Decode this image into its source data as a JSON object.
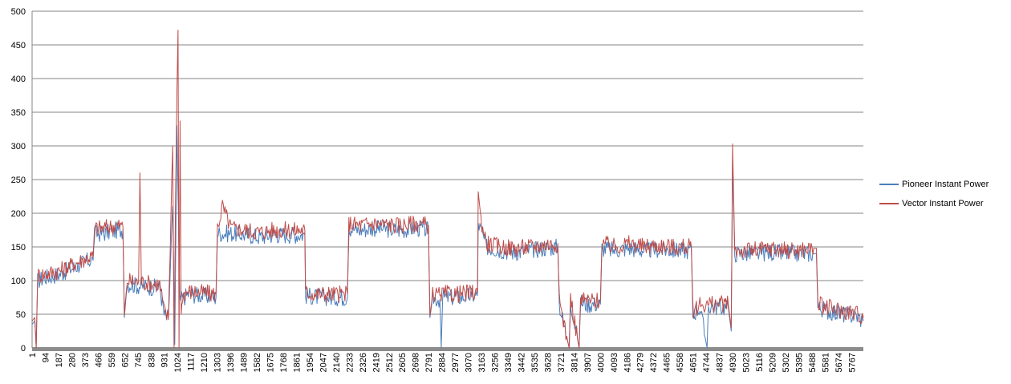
{
  "chart_data": {
    "type": "line",
    "title": "",
    "xlabel": "",
    "ylabel": "",
    "ylim": [
      0,
      500
    ],
    "yticks": [
      0,
      50,
      100,
      150,
      200,
      250,
      300,
      350,
      400,
      450,
      500
    ],
    "x_count": 5850,
    "xticks": [
      1,
      94,
      187,
      280,
      373,
      466,
      559,
      652,
      745,
      838,
      931,
      1024,
      1117,
      1210,
      1303,
      1396,
      1489,
      1582,
      1675,
      1768,
      1861,
      1954,
      2047,
      2140,
      2233,
      2326,
      2419,
      2512,
      2605,
      2698,
      2791,
      2884,
      2977,
      3070,
      3163,
      3256,
      3349,
      3442,
      3535,
      3628,
      3721,
      3814,
      3907,
      4000,
      4093,
      4186,
      4279,
      4372,
      4465,
      4558,
      4651,
      4744,
      4837,
      4930,
      5023,
      5116,
      5209,
      5302,
      5395,
      5488,
      5581,
      5674,
      5767
    ],
    "grid": "horizontal",
    "legend_position": "right",
    "series": [
      {
        "name": "Pioneer Instant Power",
        "color": "#4a7ebb",
        "points": [
          [
            1,
            35
          ],
          [
            20,
            40
          ],
          [
            30,
            0
          ],
          [
            40,
            100
          ],
          [
            100,
            105
          ],
          [
            200,
            110
          ],
          [
            300,
            120
          ],
          [
            400,
            130
          ],
          [
            430,
            130
          ],
          [
            440,
            170
          ],
          [
            500,
            170
          ],
          [
            600,
            175
          ],
          [
            640,
            175
          ],
          [
            650,
            45
          ],
          [
            670,
            95
          ],
          [
            750,
            92
          ],
          [
            850,
            90
          ],
          [
            900,
            90
          ],
          [
            930,
            50
          ],
          [
            960,
            40
          ],
          [
            990,
            210
          ],
          [
            1005,
            5
          ],
          [
            1020,
            330
          ],
          [
            1030,
            200
          ],
          [
            1040,
            70
          ],
          [
            1100,
            80
          ],
          [
            1200,
            78
          ],
          [
            1295,
            75
          ],
          [
            1305,
            170
          ],
          [
            1400,
            170
          ],
          [
            1500,
            168
          ],
          [
            1600,
            165
          ],
          [
            1700,
            168
          ],
          [
            1800,
            168
          ],
          [
            1920,
            168
          ],
          [
            1925,
            78
          ],
          [
            2000,
            76
          ],
          [
            2100,
            75
          ],
          [
            2220,
            75
          ],
          [
            2230,
            178
          ],
          [
            2300,
            175
          ],
          [
            2400,
            178
          ],
          [
            2500,
            176
          ],
          [
            2600,
            175
          ],
          [
            2700,
            178
          ],
          [
            2790,
            175
          ],
          [
            2800,
            45
          ],
          [
            2820,
            75
          ],
          [
            2870,
            72
          ],
          [
            2880,
            0
          ],
          [
            2890,
            75
          ],
          [
            3000,
            75
          ],
          [
            3100,
            78
          ],
          [
            3135,
            78
          ],
          [
            3140,
            185
          ],
          [
            3200,
            150
          ],
          [
            3300,
            145
          ],
          [
            3400,
            142
          ],
          [
            3500,
            145
          ],
          [
            3600,
            148
          ],
          [
            3700,
            150
          ],
          [
            3710,
            65
          ],
          [
            3780,
            0
          ],
          [
            3790,
            70
          ],
          [
            3850,
            0
          ],
          [
            3860,
            68
          ],
          [
            3900,
            65
          ],
          [
            4000,
            65
          ],
          [
            4010,
            148
          ],
          [
            4100,
            145
          ],
          [
            4200,
            148
          ],
          [
            4300,
            145
          ],
          [
            4400,
            146
          ],
          [
            4500,
            145
          ],
          [
            4600,
            145
          ],
          [
            4640,
            145
          ],
          [
            4650,
            50
          ],
          [
            4700,
            60
          ],
          [
            4750,
            0
          ],
          [
            4760,
            62
          ],
          [
            4900,
            60
          ],
          [
            4920,
            25
          ],
          [
            4930,
            280
          ],
          [
            4945,
            140
          ],
          [
            5000,
            140
          ],
          [
            5100,
            140
          ],
          [
            5200,
            142
          ],
          [
            5300,
            140
          ],
          [
            5400,
            140
          ],
          [
            5500,
            140
          ],
          [
            5520,
            140
          ],
          [
            5530,
            60
          ],
          [
            5600,
            55
          ],
          [
            5700,
            50
          ],
          [
            5800,
            48
          ],
          [
            5850,
            40
          ]
        ]
      },
      {
        "name": "Vector Instant Power",
        "color": "#be4b48",
        "points": [
          [
            1,
            40
          ],
          [
            20,
            45
          ],
          [
            30,
            0
          ],
          [
            40,
            108
          ],
          [
            100,
            110
          ],
          [
            200,
            115
          ],
          [
            300,
            125
          ],
          [
            400,
            135
          ],
          [
            430,
            135
          ],
          [
            440,
            178
          ],
          [
            500,
            178
          ],
          [
            600,
            182
          ],
          [
            640,
            180
          ],
          [
            650,
            48
          ],
          [
            670,
            100
          ],
          [
            750,
            98
          ],
          [
            760,
            260
          ],
          [
            770,
            98
          ],
          [
            850,
            95
          ],
          [
            900,
            95
          ],
          [
            930,
            55
          ],
          [
            960,
            45
          ],
          [
            990,
            300
          ],
          [
            1000,
            0
          ],
          [
            1010,
            210
          ],
          [
            1020,
            380
          ],
          [
            1028,
            472
          ],
          [
            1035,
            0
          ],
          [
            1042,
            337
          ],
          [
            1050,
            50
          ],
          [
            1060,
            80
          ],
          [
            1100,
            84
          ],
          [
            1200,
            82
          ],
          [
            1295,
            80
          ],
          [
            1305,
            178
          ],
          [
            1340,
            210
          ],
          [
            1400,
            178
          ],
          [
            1500,
            175
          ],
          [
            1600,
            172
          ],
          [
            1700,
            175
          ],
          [
            1800,
            175
          ],
          [
            1920,
            175
          ],
          [
            1925,
            82
          ],
          [
            2000,
            80
          ],
          [
            2100,
            80
          ],
          [
            2220,
            80
          ],
          [
            2230,
            185
          ],
          [
            2300,
            182
          ],
          [
            2400,
            185
          ],
          [
            2500,
            183
          ],
          [
            2600,
            182
          ],
          [
            2700,
            185
          ],
          [
            2790,
            182
          ],
          [
            2800,
            48
          ],
          [
            2820,
            80
          ],
          [
            2870,
            78
          ],
          [
            2880,
            80
          ],
          [
            3000,
            80
          ],
          [
            3100,
            82
          ],
          [
            3135,
            82
          ],
          [
            3140,
            232
          ],
          [
            3160,
            190
          ],
          [
            3200,
            155
          ],
          [
            3300,
            150
          ],
          [
            3400,
            148
          ],
          [
            3500,
            150
          ],
          [
            3600,
            153
          ],
          [
            3700,
            155
          ],
          [
            3710,
            70
          ],
          [
            3780,
            0
          ],
          [
            3790,
            75
          ],
          [
            3850,
            0
          ],
          [
            3860,
            72
          ],
          [
            3900,
            70
          ],
          [
            4000,
            70
          ],
          [
            4010,
            155
          ],
          [
            4100,
            150
          ],
          [
            4200,
            155
          ],
          [
            4300,
            150
          ],
          [
            4400,
            152
          ],
          [
            4500,
            150
          ],
          [
            4600,
            150
          ],
          [
            4640,
            150
          ],
          [
            4650,
            55
          ],
          [
            4700,
            65
          ],
          [
            4750,
            65
          ],
          [
            4900,
            65
          ],
          [
            4920,
            30
          ],
          [
            4930,
            303
          ],
          [
            4945,
            145
          ],
          [
            5000,
            145
          ],
          [
            5100,
            145
          ],
          [
            5200,
            148
          ],
          [
            5300,
            145
          ],
          [
            5400,
            145
          ],
          [
            5500,
            148
          ],
          [
            5520,
            148
          ],
          [
            5530,
            65
          ],
          [
            5600,
            60
          ],
          [
            5700,
            55
          ],
          [
            5800,
            52
          ],
          [
            5850,
            45
          ]
        ]
      }
    ]
  }
}
